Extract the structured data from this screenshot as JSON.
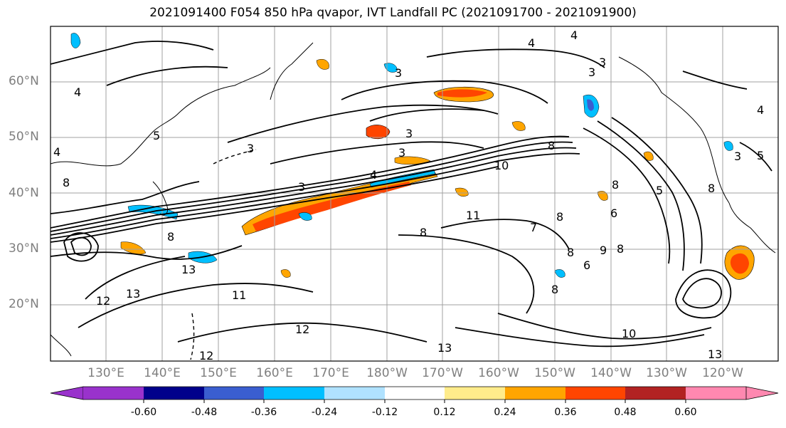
{
  "title": "2021091400 F054 850 hPa qvapor, IVT Landfall PC (2021091700 - 2021091900)",
  "lat_labels": [
    "60°N",
    "50°N",
    "40°N",
    "30°N",
    "20°N"
  ],
  "lon_labels": [
    "130°E",
    "140°E",
    "150°E",
    "160°E",
    "170°E",
    "180°W",
    "170°W",
    "160°W",
    "150°W",
    "140°W",
    "130°W",
    "120°W"
  ],
  "colorbar": {
    "colors": [
      "#9932cc",
      "#00008b",
      "#3a5ed0",
      "#00bfff",
      "#b0e2ff",
      "#ffffff",
      "#ffec8b",
      "#ffa500",
      "#ff4500",
      "#b22222",
      "#ff88b0"
    ],
    "tick_labels": [
      "-0.60",
      "-0.48",
      "-0.36",
      "-0.24",
      "-0.12",
      "0.12",
      "0.24",
      "0.36",
      "0.48",
      "0.60"
    ]
  },
  "contour_labels": [
    "4",
    "4",
    "4",
    "3",
    "3",
    "3",
    "3",
    "3",
    "3",
    "3",
    "3",
    "4",
    "4",
    "4",
    "5",
    "5",
    "8",
    "8",
    "6",
    "10",
    "8",
    "8",
    "7",
    "11",
    "8",
    "8",
    "9",
    "8",
    "8",
    "6",
    "8",
    "13",
    "12",
    "13",
    "11",
    "12",
    "12",
    "13",
    "10",
    "13",
    "5",
    "8"
  ]
}
